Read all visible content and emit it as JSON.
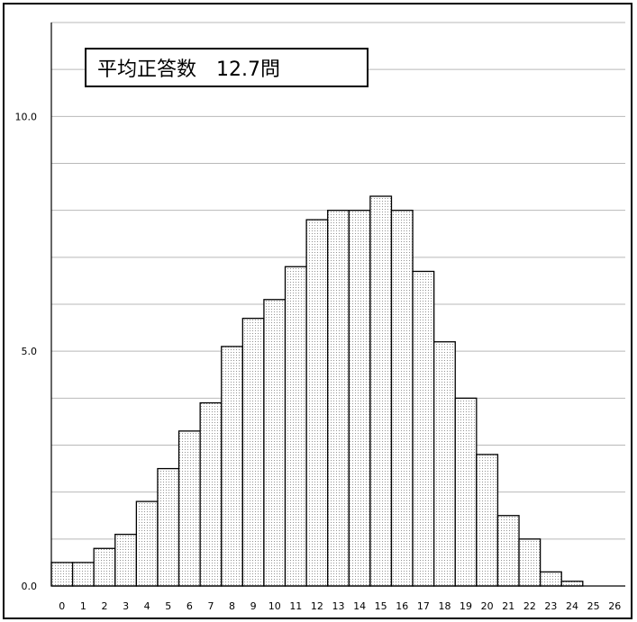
{
  "chart_data": {
    "type": "bar",
    "categories": [
      "0",
      "1",
      "2",
      "3",
      "4",
      "5",
      "6",
      "7",
      "8",
      "9",
      "10",
      "11",
      "12",
      "13",
      "14",
      "15",
      "16",
      "17",
      "18",
      "19",
      "20",
      "21",
      "22",
      "23",
      "24",
      "25",
      "26"
    ],
    "values": [
      0.5,
      0.5,
      0.8,
      1.1,
      1.8,
      2.5,
      3.3,
      3.9,
      5.1,
      5.7,
      6.1,
      6.8,
      7.8,
      8.0,
      8.0,
      8.3,
      8.0,
      6.7,
      5.2,
      4.0,
      2.8,
      1.5,
      1.0,
      0.3,
      0.1,
      0,
      0
    ],
    "title": "",
    "xlabel": "",
    "ylabel": "",
    "ylim": [
      0,
      12
    ],
    "y_ticks": [
      "0.0",
      "5.0",
      "10.0"
    ],
    "grid": true,
    "annotation": "平均正答数　12.7問",
    "bar_pattern": "dotted",
    "colors": {
      "bar_fill": "#ffffff",
      "bar_dots": "#7a7a7a",
      "bar_stroke": "#000000",
      "grid": "#b9b9b9",
      "axis": "#000000"
    }
  }
}
